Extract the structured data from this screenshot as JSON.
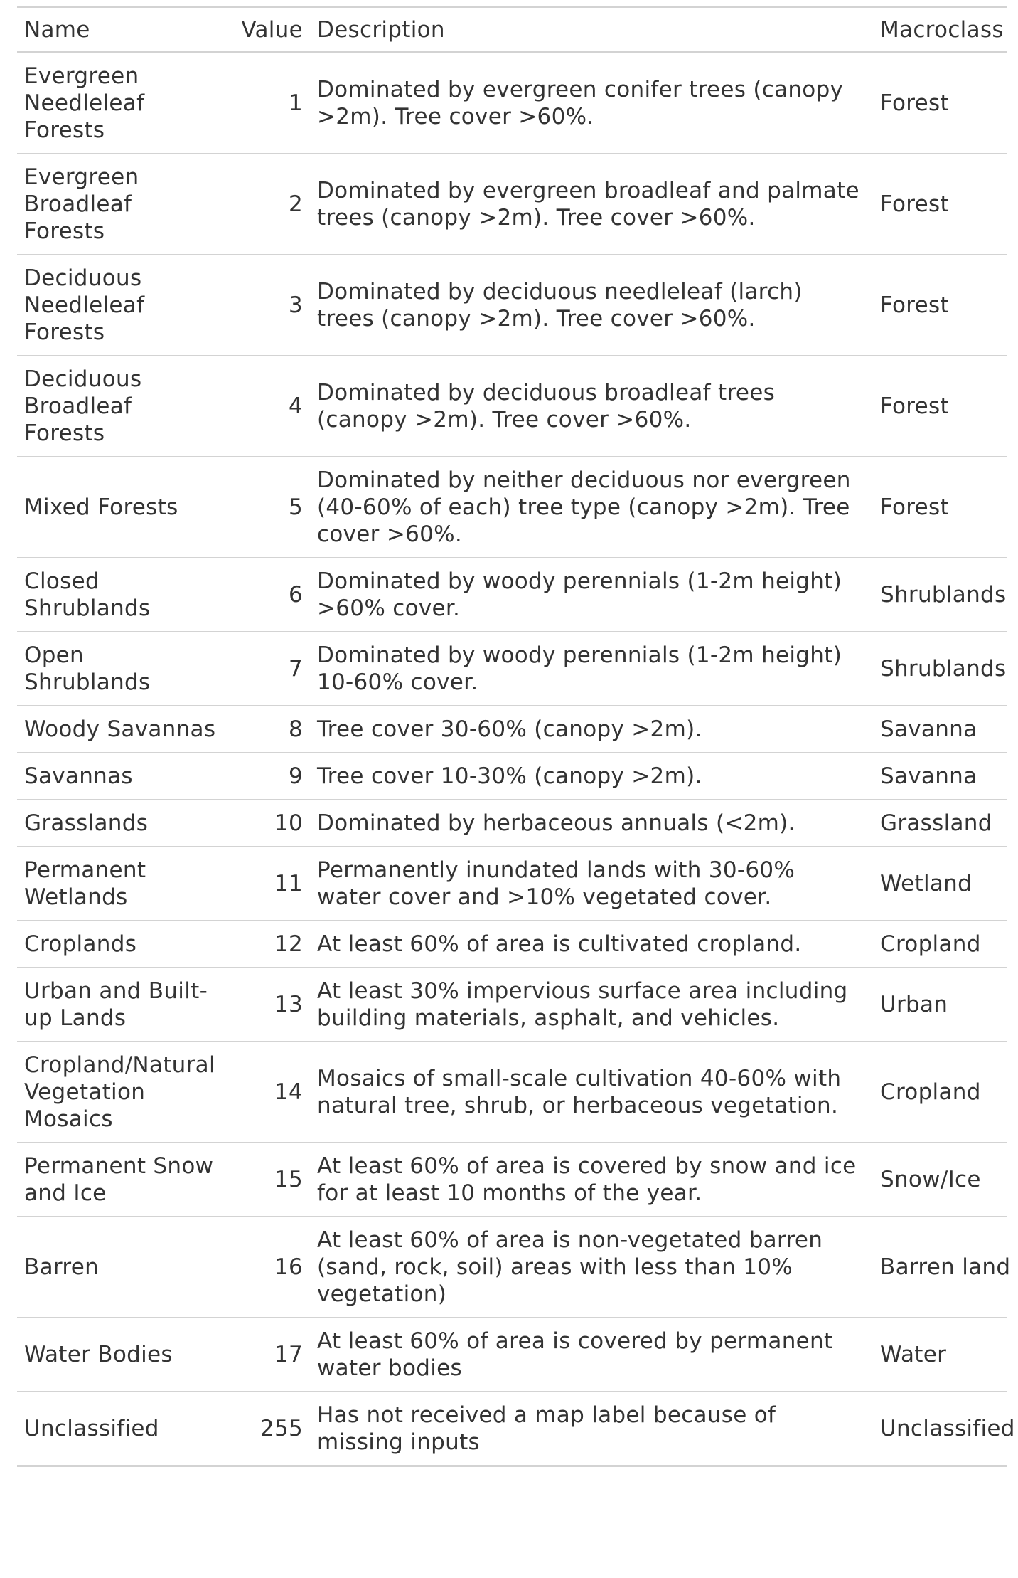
{
  "table": {
    "headers": {
      "name": "Name",
      "value": "Value",
      "description": "Description",
      "macroclass": "Macroclass"
    },
    "rows": [
      {
        "name": "Evergreen Needleleaf Forests",
        "value": "1",
        "description": "Dominated by evergreen conifer trees (canopy >2m). Tree cover >60%.",
        "macroclass": "Forest"
      },
      {
        "name": "Evergreen Broadleaf Forests",
        "value": "2",
        "description": "Dominated by evergreen broadleaf and palmate trees (canopy >2m). Tree cover >60%.",
        "macroclass": "Forest"
      },
      {
        "name": "Deciduous Needleleaf Forests",
        "value": "3",
        "description": "Dominated by deciduous needleleaf (larch) trees (canopy >2m). Tree cover >60%.",
        "macroclass": "Forest"
      },
      {
        "name": "Deciduous Broadleaf Forests",
        "value": "4",
        "description": "Dominated by deciduous broadleaf trees (canopy >2m). Tree cover >60%.",
        "macroclass": "Forest"
      },
      {
        "name": "Mixed Forests",
        "value": "5",
        "description": "Dominated by neither deciduous nor evergreen (40-60% of each) tree type (canopy >2m). Tree cover >60%.",
        "macroclass": "Forest"
      },
      {
        "name": "Closed Shrublands",
        "value": "6",
        "description": "Dominated by woody perennials (1-2m height) >60% cover.",
        "macroclass": "Shrublands"
      },
      {
        "name": "Open Shrublands",
        "value": "7",
        "description": "Dominated by woody perennials (1-2m height) 10-60% cover.",
        "macroclass": "Shrublands"
      },
      {
        "name": "Woody Savannas",
        "value": "8",
        "description": "Tree cover 30-60% (canopy >2m).",
        "macroclass": "Savanna"
      },
      {
        "name": "Savannas",
        "value": "9",
        "description": "Tree cover 10-30% (canopy >2m).",
        "macroclass": "Savanna"
      },
      {
        "name": "Grasslands",
        "value": "10",
        "description": "Dominated by herbaceous annuals (<2m).",
        "macroclass": "Grassland"
      },
      {
        "name": "Permanent Wetlands",
        "value": "11",
        "description": "Permanently inundated lands with 30-60% water cover and >10% vegetated cover.",
        "macroclass": "Wetland"
      },
      {
        "name": "Croplands",
        "value": "12",
        "description": "At least 60% of area is cultivated cropland.",
        "macroclass": "Cropland"
      },
      {
        "name": "Urban and Built-up Lands",
        "value": "13",
        "description": "At least 30% impervious surface area including building materials, asphalt, and vehicles.",
        "macroclass": "Urban"
      },
      {
        "name": "Cropland/Natural Vegetation Mosaics",
        "value": "14",
        "description": "Mosaics of small-scale cultivation 40-60% with natural tree, shrub, or herbaceous vegetation.",
        "macroclass": "Cropland"
      },
      {
        "name": "Permanent Snow and Ice",
        "value": "15",
        "description": "At least 60% of area is covered by snow and ice for at least 10 months of the year.",
        "macroclass": "Snow/Ice"
      },
      {
        "name": "Barren",
        "value": "16",
        "description": "At least 60% of area is non-vegetated barren (sand, rock, soil) areas with less than 10% vegetation)",
        "macroclass": "Barren land"
      },
      {
        "name": "Water Bodies",
        "value": "17",
        "description": "At least 60% of area is covered by permanent water bodies",
        "macroclass": "Water"
      },
      {
        "name": "Unclassified",
        "value": "255",
        "description": "Has not received a map label because of missing inputs",
        "macroclass": "Unclassified"
      }
    ]
  }
}
